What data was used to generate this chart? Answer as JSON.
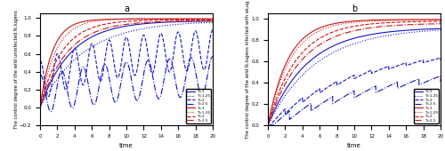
{
  "title_a": "a",
  "title_b": "b",
  "xlabel": "time",
  "ylabel_a": "The control degree of the wild uninfected N.lugens",
  "ylabel_b": "The control degree of the wild N.lugens infected with wLug",
  "xlim": [
    0,
    20
  ],
  "ylim_a": [
    -0.2,
    1.05
  ],
  "ylim_b": [
    0,
    1.05
  ],
  "blue_color": "#1111CC",
  "red_color": "#CC1111",
  "legend_entries": [
    "T=1",
    "T=1.25",
    "T=2",
    "T=2.5",
    "T=1",
    "T=1.25",
    "T=2",
    "T=2.5"
  ],
  "linestyles_blue": [
    "solid",
    "dotted",
    "dashed",
    "dashdot"
  ],
  "linestyles_red": [
    "solid",
    "dotted",
    "dashed",
    "dashdot"
  ],
  "T_vals": [
    1.0,
    1.25,
    2.0,
    2.5
  ]
}
